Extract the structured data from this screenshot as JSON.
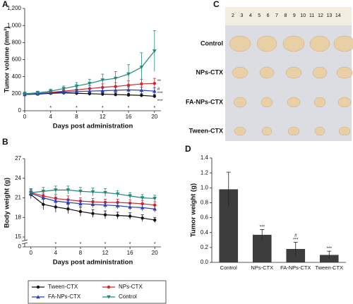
{
  "panel_labels": [
    "A",
    "B",
    "C",
    "D"
  ],
  "photo": {
    "rows": [
      "Control",
      "NPs-CTX",
      "FA-NPs-CTX",
      "Tween-CTX"
    ],
    "ruler": [
      "2",
      "3",
      "4",
      "5",
      "6",
      "7",
      "8",
      "9",
      "10",
      "11",
      "12",
      "13",
      "14"
    ]
  },
  "chart_data": [
    {
      "type": "line",
      "x_label": "Days post administration",
      "y_label": "Tumor volume (mm³)",
      "x": [
        0,
        2,
        4,
        6,
        8,
        10,
        12,
        14,
        16,
        18,
        20
      ],
      "xlim": [
        0,
        21
      ],
      "xticks": [
        0,
        4,
        8,
        12,
        16,
        20
      ],
      "ylim": [
        0,
        1200
      ],
      "yticks": [
        0,
        200,
        400,
        600,
        800,
        {
          "value": 1000,
          "label": "1,000"
        },
        {
          "value": 1200,
          "label": "1,200"
        }
      ],
      "significance_marks": {
        "text": "*",
        "x": [
          4,
          8,
          12,
          16,
          20
        ]
      },
      "series": [
        {
          "name": "Tween-CTX",
          "color": "#111111",
          "marker": "circle",
          "values": [
            190,
            195,
            205,
            210,
            205,
            200,
            195,
            190,
            185,
            180,
            170
          ],
          "errors": [
            15,
            15,
            20,
            20,
            20,
            20,
            20,
            20,
            20,
            20,
            20
          ],
          "end_labels": [
            "***"
          ]
        },
        {
          "name": "NPs-CTX",
          "color": "#d62728",
          "marker": "circle",
          "values": [
            190,
            200,
            215,
            230,
            245,
            260,
            275,
            285,
            300,
            315,
            320
          ],
          "errors": [
            15,
            15,
            20,
            25,
            30,
            35,
            40,
            45,
            50,
            55,
            60
          ],
          "end_labels": [
            "**"
          ]
        },
        {
          "name": "FA-NPs-CTX",
          "color": "#2b3fb5",
          "marker": "triangle",
          "values": [
            190,
            200,
            210,
            220,
            225,
            230,
            235,
            240,
            245,
            240,
            230
          ],
          "errors": [
            15,
            15,
            20,
            25,
            25,
            30,
            30,
            35,
            35,
            35,
            40
          ],
          "end_labels": [
            "#",
            "***"
          ]
        },
        {
          "name": "Control",
          "color": "#1f8a7c",
          "marker": "triangle-down",
          "values": [
            200,
            210,
            230,
            260,
            290,
            320,
            360,
            380,
            430,
            510,
            700
          ],
          "errors": [
            20,
            20,
            25,
            30,
            40,
            50,
            70,
            80,
            110,
            170,
            240
          ]
        }
      ]
    },
    {
      "type": "line",
      "x_label": "Days post administration",
      "y_label": "Body weight (g)",
      "x": [
        0,
        2,
        4,
        6,
        8,
        10,
        12,
        14,
        16,
        18,
        20
      ],
      "xlim": [
        -1,
        21
      ],
      "xticks": [
        0,
        4,
        8,
        12,
        16,
        20
      ],
      "ylim": [
        0,
        27
      ],
      "axis_break": [
        0,
        15
      ],
      "yticks": [
        0,
        15,
        18,
        21,
        24,
        27
      ],
      "significance_marks": {
        "text": "*",
        "x": [
          4,
          8,
          12,
          16,
          20
        ]
      },
      "legend": "bottom",
      "series": [
        {
          "name": "Tween-CTX",
          "color": "#111111",
          "marker": "circle",
          "values": [
            21.5,
            20.0,
            19.6,
            19.3,
            18.9,
            18.6,
            18.4,
            18.3,
            18.2,
            17.9,
            17.6
          ],
          "errors": [
            0.6,
            0.8,
            0.8,
            0.7,
            0.7,
            0.6,
            0.6,
            0.5,
            0.5,
            0.5,
            0.4
          ]
        },
        {
          "name": "NPs-CTX",
          "color": "#d62728",
          "marker": "circle",
          "values": [
            21.8,
            21.3,
            20.9,
            20.7,
            20.5,
            20.4,
            20.3,
            20.3,
            20.2,
            20.1,
            19.9
          ],
          "errors": [
            0.6,
            0.6,
            0.6,
            0.6,
            0.5,
            0.5,
            0.5,
            0.5,
            0.5,
            0.5,
            0.5
          ]
        },
        {
          "name": "FA-NPs-CTX",
          "color": "#2b3fb5",
          "marker": "triangle",
          "values": [
            21.7,
            21.0,
            20.5,
            20.3,
            20.1,
            20.0,
            19.9,
            19.8,
            19.6,
            19.5,
            19.3
          ],
          "errors": [
            0.6,
            0.6,
            0.6,
            0.5,
            0.5,
            0.5,
            0.5,
            0.5,
            0.5,
            0.5,
            0.5
          ]
        },
        {
          "name": "Control",
          "color": "#1f8a7c",
          "marker": "triangle-down",
          "values": [
            21.8,
            22.0,
            22.2,
            22.2,
            22.0,
            21.9,
            21.8,
            21.6,
            21.3,
            21.0,
            20.9
          ],
          "errors": [
            0.6,
            0.6,
            0.6,
            0.6,
            0.6,
            0.6,
            0.6,
            0.5,
            0.5,
            0.5,
            0.5
          ]
        }
      ]
    },
    {
      "type": "bar",
      "y_label": "Tumor weight (g)",
      "color": "#3d3d3d",
      "categories": [
        "Control",
        "NPs-CTX",
        "FA-NPs-CTX",
        "Tween-CTX"
      ],
      "values": [
        0.98,
        0.37,
        0.18,
        0.1
      ],
      "errors": [
        0.23,
        0.07,
        0.09,
        0.05
      ],
      "annotations": [
        null,
        "***",
        "#\n***",
        "***"
      ],
      "ylim": [
        0,
        1.4
      ],
      "yticks": [
        {
          "value": 0,
          "label": "0.0"
        },
        {
          "value": 0.2,
          "label": "0.2"
        },
        {
          "value": 0.4,
          "label": "0.4"
        },
        {
          "value": 0.6,
          "label": "0.6"
        },
        {
          "value": 0.8,
          "label": "0.8"
        },
        {
          "value": 1.0,
          "label": "1.0"
        },
        {
          "value": 1.2,
          "label": "1.2"
        },
        {
          "value": 1.4,
          "label": "1.4"
        }
      ]
    }
  ]
}
